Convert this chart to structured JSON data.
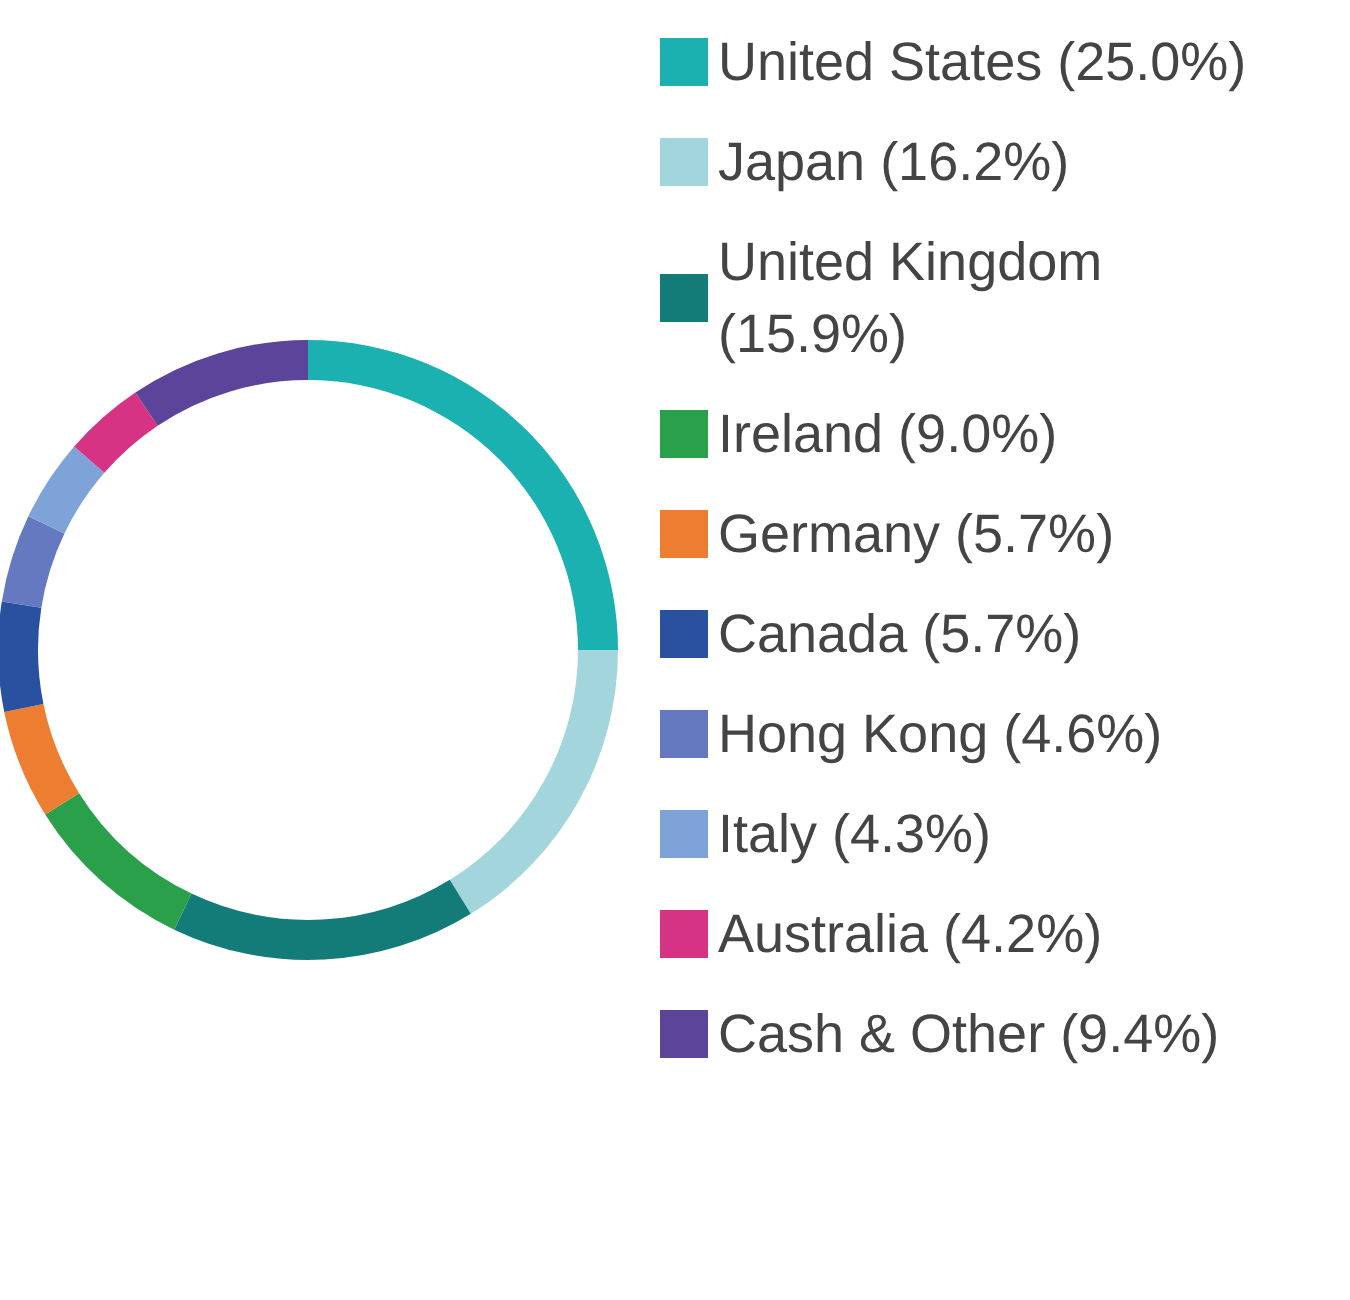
{
  "chart_data": {
    "type": "donut",
    "categories": [
      "United States (25.0%)",
      "Japan (16.2%)",
      "United Kingdom (15.9%)",
      "Ireland (9.0%)",
      "Germany (5.7%)",
      "Canada (5.7%)",
      "Hong Kong (4.6%)",
      "Italy (4.3%)",
      "Australia (4.2%)",
      "Cash & Other (9.4%)"
    ],
    "values": [
      25.0,
      16.2,
      15.9,
      9.0,
      5.7,
      5.7,
      4.6,
      4.3,
      4.2,
      9.4
    ],
    "colors": [
      "#1ab1b0",
      "#a3d5dc",
      "#147c78",
      "#2aa04a",
      "#ed7d31",
      "#2a50a0",
      "#6479bf",
      "#7ea3d8",
      "#d63384",
      "#5b4499"
    ],
    "legend": "right"
  }
}
